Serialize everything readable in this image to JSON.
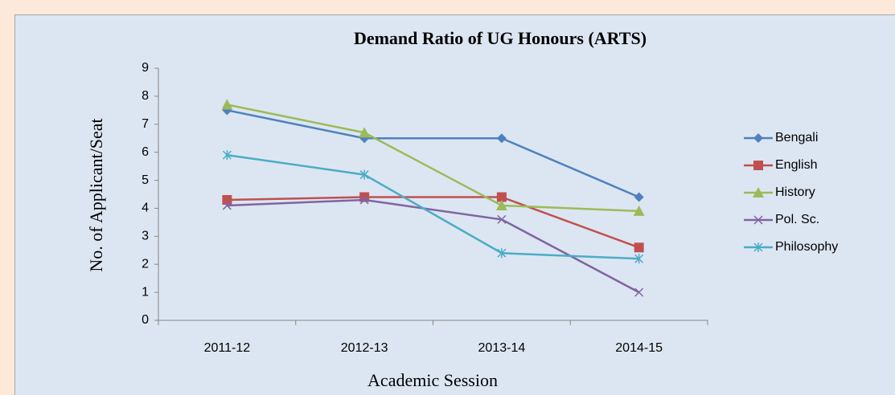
{
  "chart_data": {
    "type": "line",
    "title": "Demand Ratio of UG Honours (ARTS)",
    "x_label": "Academic Session",
    "y_label": "No. of Applicant/Seat",
    "categories": [
      "2011-12",
      "2012-13",
      "2013-14",
      "2014-15"
    ],
    "series": [
      {
        "name": "Bengali",
        "color": "#4f81bd",
        "marker": "diamond",
        "values": [
          7.5,
          6.5,
          6.5,
          4.4
        ]
      },
      {
        "name": "English",
        "color": "#c0504d",
        "marker": "square",
        "values": [
          4.3,
          4.4,
          4.4,
          2.6
        ]
      },
      {
        "name": "History",
        "color": "#9bbb59",
        "marker": "triangle",
        "values": [
          7.7,
          6.7,
          4.1,
          3.9
        ]
      },
      {
        "name": "Pol. Sc.",
        "color": "#8064a2",
        "marker": "x",
        "values": [
          4.1,
          4.3,
          3.6,
          1.0
        ]
      },
      {
        "name": "Philosophy",
        "color": "#4bacc6",
        "marker": "star",
        "values": [
          5.9,
          5.2,
          2.4,
          2.2
        ]
      }
    ],
    "ylim": [
      0,
      9
    ],
    "yticks": [
      0,
      1,
      2,
      3,
      4,
      5,
      6,
      7,
      8,
      9
    ],
    "grid": false,
    "legend": "right"
  }
}
